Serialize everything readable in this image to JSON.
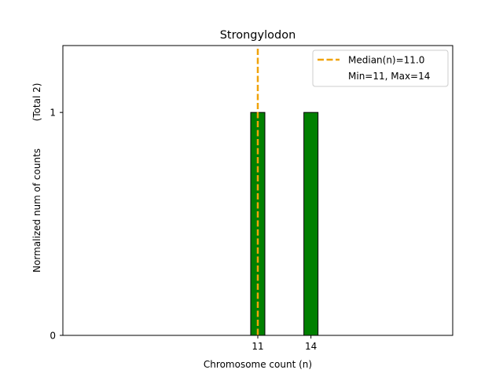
{
  "chart_data": {
    "type": "bar",
    "title": "Strongylodon",
    "xlabel": "Chromosome count (n)",
    "ylabel": "Normalized num of counts",
    "ylabel_note": "(Total 2)",
    "bars": [
      {
        "x": 11,
        "value": 1
      },
      {
        "x": 14,
        "value": 1
      }
    ],
    "bar_color": "#008000",
    "xticks": [
      11,
      14
    ],
    "yticks": [
      0,
      1
    ],
    "xlim": [
      0,
      22
    ],
    "ylim": [
      0,
      1.3
    ],
    "median": {
      "value": 11.0,
      "color": "#f0a30a"
    },
    "legend": {
      "placement": "top-right",
      "entries": [
        "Median(n)=11.0",
        "Min=11, Max=14"
      ]
    }
  }
}
